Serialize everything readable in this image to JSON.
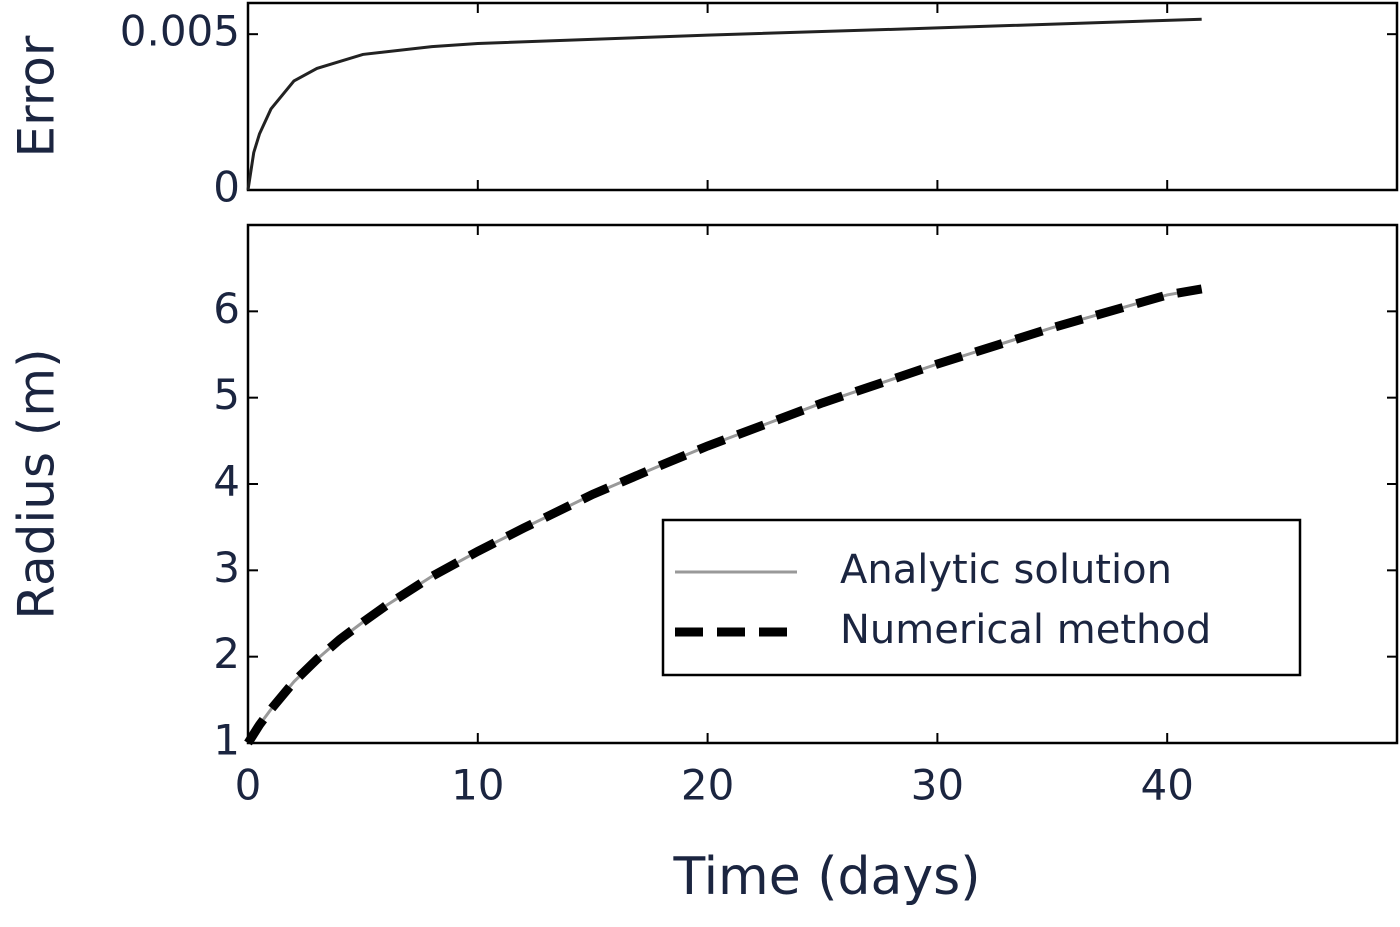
{
  "chart_data": [
    {
      "type": "line",
      "ylabel": "Error",
      "x": [
        0,
        0.25,
        0.5,
        1,
        2,
        3,
        5,
        8,
        10,
        20,
        30,
        41.5
      ],
      "series": [
        {
          "color": "#222222",
          "values": [
            0,
            0.0012,
            0.0018,
            0.0026,
            0.0035,
            0.0039,
            0.00435,
            0.0046,
            0.0047,
            0.00497,
            0.0052,
            0.00548
          ]
        }
      ],
      "xlim": [
        0,
        50
      ],
      "xticks": [
        0,
        10,
        20,
        30,
        40
      ],
      "ylim": [
        0,
        0.006
      ],
      "yticks": [
        0,
        0.005
      ]
    },
    {
      "type": "line",
      "ylabel": "Radius (m)",
      "xlabel": "Time (days)",
      "x": [
        0,
        0.5,
        1,
        2,
        3,
        4,
        5,
        6,
        8,
        10,
        12,
        15,
        18,
        20,
        25,
        30,
        35,
        40,
        41.5
      ],
      "series": [
        {
          "name": "Analytic solution",
          "color": "#999999",
          "dash": false,
          "values": [
            1,
            1.21,
            1.39,
            1.71,
            1.97,
            2.2,
            2.4,
            2.59,
            2.93,
            3.22,
            3.49,
            3.88,
            4.22,
            4.44,
            4.94,
            5.39,
            5.81,
            6.19,
            6.26
          ]
        },
        {
          "name": "Numerical method",
          "color": "#000000",
          "dash": true,
          "values": [
            1,
            1.21,
            1.39,
            1.71,
            1.97,
            2.2,
            2.4,
            2.59,
            2.93,
            3.22,
            3.49,
            3.88,
            4.22,
            4.44,
            4.94,
            5.39,
            5.81,
            6.19,
            6.26
          ]
        }
      ],
      "xlim": [
        0,
        50
      ],
      "xticks": [
        0,
        10,
        20,
        30,
        40
      ],
      "ylim": [
        1,
        7
      ],
      "yticks": [
        1,
        2,
        3,
        4,
        5,
        6
      ],
      "legend": "lower right"
    }
  ]
}
